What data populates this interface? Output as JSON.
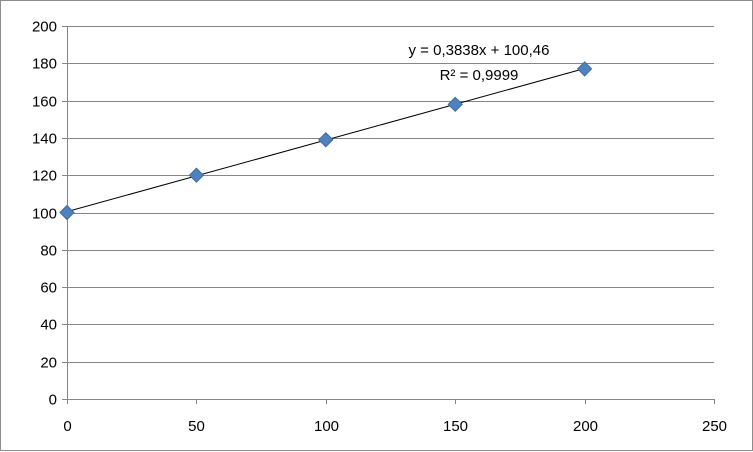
{
  "chart_data": {
    "type": "scatter",
    "title": "",
    "xlabel": "",
    "ylabel": "",
    "xlim": [
      0,
      250
    ],
    "ylim": [
      0,
      200
    ],
    "x_ticks": [
      "0",
      "50",
      "100",
      "150",
      "200",
      "250"
    ],
    "y_ticks": [
      "0",
      "20",
      "40",
      "60",
      "80",
      "100",
      "120",
      "140",
      "160",
      "180",
      "200"
    ],
    "grid": "horizontal",
    "legend": "none",
    "series": [
      {
        "marker": "diamond",
        "color": "#4f81bd",
        "points": [
          {
            "x": 0,
            "y": 100
          },
          {
            "x": 50,
            "y": 120
          },
          {
            "x": 100,
            "y": 139
          },
          {
            "x": 150,
            "y": 158
          },
          {
            "x": 200,
            "y": 177
          }
        ]
      }
    ],
    "trendline": {
      "type": "linear",
      "slope": 0.3838,
      "intercept": 100.46,
      "x_range": [
        0,
        200
      ],
      "color": "#000000",
      "equation_label": "y = 0,3838x + 100,46",
      "r2_label": "R² = 0,9999"
    }
  }
}
